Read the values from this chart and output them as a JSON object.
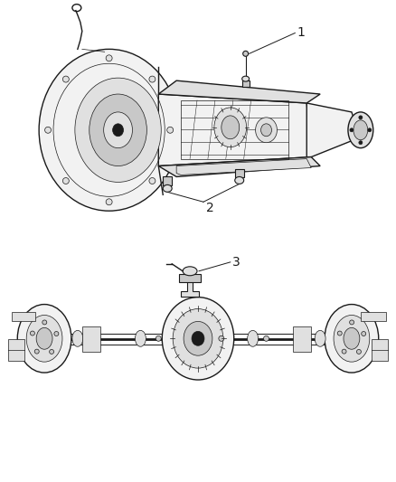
{
  "background_color": "#ffffff",
  "line_color": "#1a1a1a",
  "fill_light": "#f2f2f2",
  "fill_mid": "#e0e0e0",
  "fill_dark": "#c8c8c8",
  "label1": "1",
  "label2": "2",
  "label3": "3",
  "font_size": 10,
  "lw_main": 1.0,
  "lw_thin": 0.5
}
